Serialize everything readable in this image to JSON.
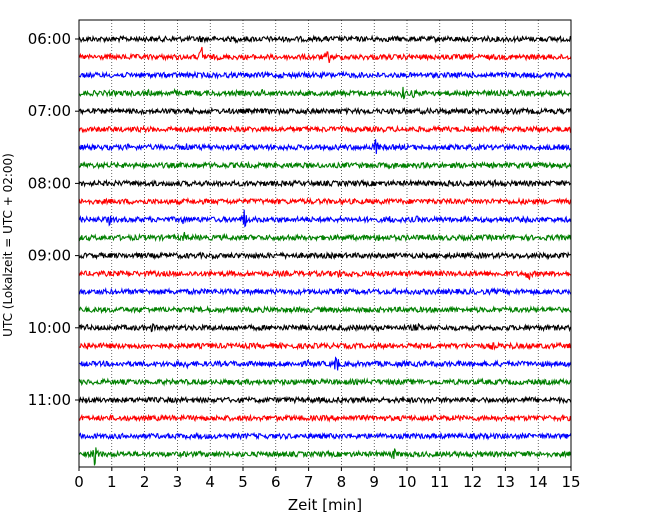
{
  "chart_data": {
    "type": "line",
    "xlabel": "Zeit  [min]",
    "ylabel": "UTC (Lokalzeit = UTC + 02:00)",
    "xlim": [
      0,
      15
    ],
    "x_ticks": [
      "0",
      "1",
      "2",
      "3",
      "4",
      "5",
      "6",
      "7",
      "8",
      "9",
      "10",
      "11",
      "12",
      "13",
      "14",
      "15"
    ],
    "y_ticks": [
      "06:00",
      "07:00",
      "08:00",
      "09:00",
      "10:00",
      "11:00"
    ],
    "grid": "vertical dotted",
    "trace_minutes": 15,
    "color_cycle": [
      "#000000",
      "#ff0000",
      "#0000ff",
      "#008000"
    ],
    "traces": [
      {
        "start": "06:00",
        "color": "#000000",
        "events": [
          [
            3.7,
            1.5
          ],
          [
            4.8,
            1.3
          ]
        ]
      },
      {
        "start": "06:15",
        "color": "#ff0000",
        "events": [
          [
            3.75,
            5.0
          ],
          [
            7.6,
            2.8
          ]
        ]
      },
      {
        "start": "06:30",
        "color": "#0000ff",
        "events": []
      },
      {
        "start": "06:45",
        "color": "#008000",
        "events": [
          [
            2.1,
            1.4
          ],
          [
            2.9,
            1.4
          ],
          [
            5.6,
            1.6
          ],
          [
            9.9,
            2.8
          ],
          [
            10.2,
            1.8
          ]
        ]
      },
      {
        "start": "07:00",
        "color": "#000000",
        "events": [
          [
            10.8,
            1.3
          ]
        ]
      },
      {
        "start": "07:15",
        "color": "#ff0000",
        "events": [
          [
            4.2,
            1.2
          ]
        ]
      },
      {
        "start": "07:30",
        "color": "#0000ff",
        "events": [
          [
            1.5,
            1.3
          ],
          [
            3.3,
            1.7
          ],
          [
            9.05,
            3.6
          ]
        ]
      },
      {
        "start": "07:45",
        "color": "#008000",
        "events": [
          [
            9.6,
            1.4
          ]
        ]
      },
      {
        "start": "08:00",
        "color": "#000000",
        "events": [
          [
            11.3,
            1.2
          ],
          [
            12.7,
            1.5
          ]
        ]
      },
      {
        "start": "08:15",
        "color": "#ff0000",
        "events": [
          [
            9.3,
            1.3
          ],
          [
            13.5,
            1.3
          ]
        ]
      },
      {
        "start": "08:30",
        "color": "#0000ff",
        "events": [
          [
            0.9,
            2.5
          ],
          [
            3.2,
            2.0
          ],
          [
            5.05,
            4.5
          ],
          [
            9.5,
            1.8
          ],
          [
            10.3,
            1.4
          ]
        ]
      },
      {
        "start": "08:45",
        "color": "#008000",
        "events": [
          [
            3.2,
            2.2
          ],
          [
            6.3,
            2.0
          ],
          [
            9.15,
            2.0
          ]
        ]
      },
      {
        "start": "09:00",
        "color": "#000000",
        "events": []
      },
      {
        "start": "09:15",
        "color": "#ff0000",
        "events": [
          [
            1.5,
            1.3
          ],
          [
            7.9,
            2.0
          ],
          [
            8.3,
            1.6
          ],
          [
            13.7,
            3.0
          ]
        ]
      },
      {
        "start": "09:30",
        "color": "#0000ff",
        "events": []
      },
      {
        "start": "09:45",
        "color": "#008000",
        "events": [
          [
            2.0,
            1.3
          ]
        ]
      },
      {
        "start": "10:00",
        "color": "#000000",
        "events": [
          [
            0.2,
            1.6
          ],
          [
            2.25,
            1.8
          ],
          [
            10.3,
            2.0
          ]
        ]
      },
      {
        "start": "10:15",
        "color": "#ff0000",
        "events": [
          [
            0.25,
            1.8
          ],
          [
            12.6,
            1.6
          ],
          [
            13.2,
            1.5
          ]
        ]
      },
      {
        "start": "10:30",
        "color": "#0000ff",
        "events": [
          [
            3.25,
            1.8
          ],
          [
            7.0,
            1.5
          ],
          [
            7.85,
            3.8
          ]
        ]
      },
      {
        "start": "10:45",
        "color": "#008000",
        "events": []
      },
      {
        "start": "11:00",
        "color": "#000000",
        "events": []
      },
      {
        "start": "11:15",
        "color": "#ff0000",
        "events": []
      },
      {
        "start": "11:30",
        "color": "#0000ff",
        "events": []
      },
      {
        "start": "11:45",
        "color": "#008000",
        "events": [
          [
            0.5,
            6.0
          ],
          [
            9.6,
            2.4
          ]
        ]
      }
    ]
  }
}
